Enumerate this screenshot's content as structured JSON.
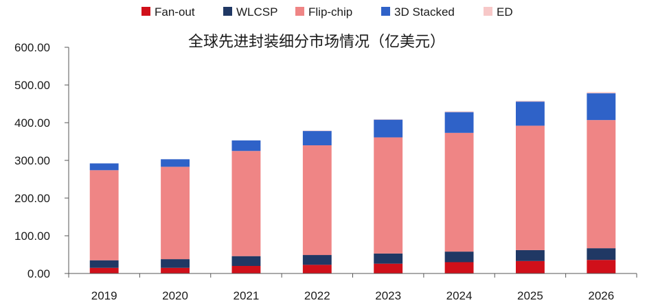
{
  "chart_data": {
    "type": "bar",
    "stacked": true,
    "title": "全球先进封装细分市场情况（亿美元）",
    "categories": [
      "2019",
      "2020",
      "2021",
      "2022",
      "2023",
      "2024",
      "2025",
      "2026"
    ],
    "series": [
      {
        "name": "Fan-out",
        "color": "#d0101a",
        "values": [
          15,
          15,
          20,
          23,
          26,
          30,
          33,
          36
        ]
      },
      {
        "name": "WLCSP",
        "color": "#203864",
        "values": [
          20,
          23,
          26,
          26,
          27,
          28,
          29,
          31
        ]
      },
      {
        "name": "Flip-chip",
        "color": "#ef8585",
        "values": [
          239,
          245,
          279,
          291,
          308,
          315,
          330,
          340
        ]
      },
      {
        "name": "3D Stacked",
        "color": "#2f62c8",
        "values": [
          18,
          20,
          28,
          38,
          47,
          55,
          64,
          71
        ]
      },
      {
        "name": "ED",
        "color": "#f7c8c8",
        "values": [
          0,
          0,
          0,
          1,
          1,
          2,
          2,
          3
        ]
      }
    ],
    "yticks": [
      "0.00",
      "100.00",
      "200.00",
      "300.00",
      "400.00",
      "500.00",
      "600.00"
    ],
    "ylim": [
      0,
      600
    ],
    "grid": false,
    "legend_position": "top"
  }
}
